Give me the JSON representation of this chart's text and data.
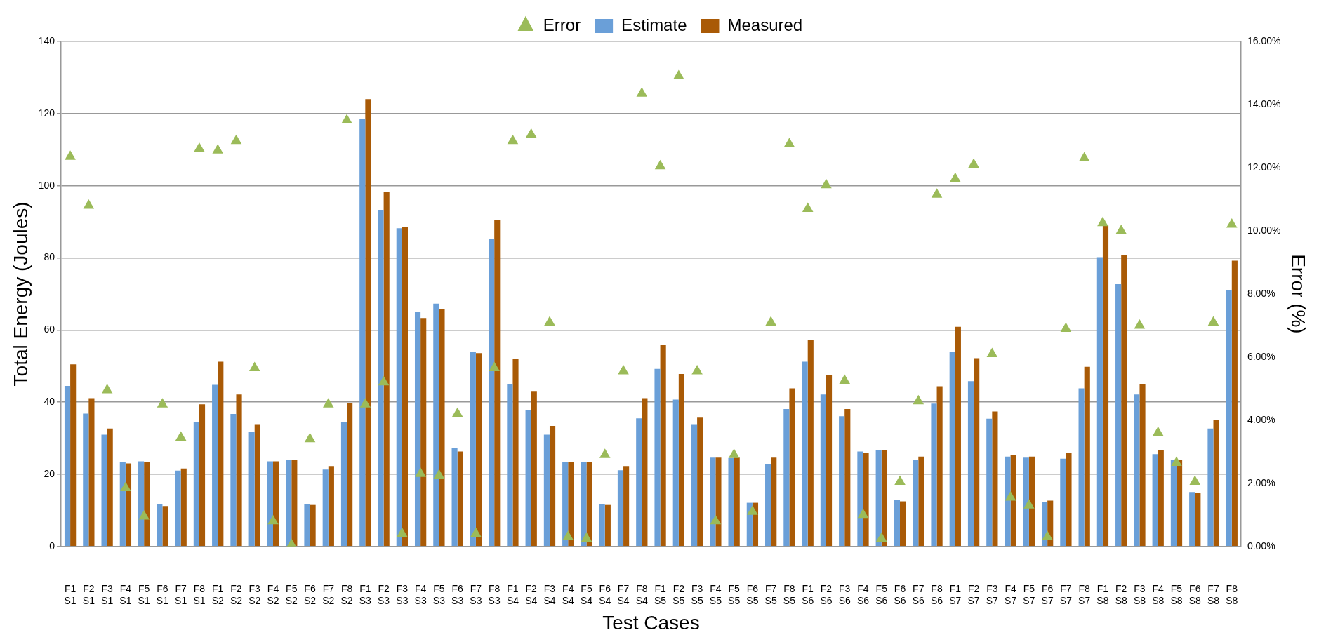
{
  "chart_data": {
    "type": "bar",
    "xlabel": "Test Cases",
    "ylabel": "Total Energy (Joules)",
    "y2label": "Error (%)",
    "categories": [
      "F1 S1",
      "F2 S1",
      "F3 S1",
      "F4 S1",
      "F5 S1",
      "F6 S1",
      "F7 S1",
      "F8 S1",
      "F1 S2",
      "F2 S2",
      "F3 S2",
      "F4 S2",
      "F5 S2",
      "F6 S2",
      "F7 S2",
      "F8 S2",
      "F1 S3",
      "F2 S3",
      "F3 S3",
      "F4 S3",
      "F5 S3",
      "F6 S3",
      "F7 S3",
      "F8 S3",
      "F1 S4",
      "F2 S4",
      "F3 S4",
      "F4 S4",
      "F5 S4",
      "F6 S4",
      "F7 S4",
      "F8 S4",
      "F1 S5",
      "F2 S5",
      "F3 S5",
      "F4 S5",
      "F5 S5",
      "F6 S5",
      "F7 S5",
      "F8 S5",
      "F1 S6",
      "F2 S6",
      "F3 S6",
      "F4 S6",
      "F5 S6",
      "F6 S6",
      "F7 S6",
      "F8 S6",
      "F1 S7",
      "F2 S7",
      "F3 S7",
      "F4 S7",
      "F5 S7",
      "F6 S7",
      "F7 S7",
      "F8 S7",
      "F1 S8",
      "F2 S8",
      "F3 S8",
      "F4 S8",
      "F5 S8",
      "F6 S8",
      "F7 S8",
      "F8 S8"
    ],
    "series": [
      {
        "name": "Estimate",
        "color": "#6a9fd8",
        "values": [
          44.5,
          36.8,
          31,
          23.3,
          23.6,
          11.8,
          21,
          34.4,
          44.8,
          36.7,
          31.7,
          23.6,
          24,
          11.8,
          21.3,
          34.4,
          118.5,
          93.2,
          88.2,
          65,
          67.3,
          27.3,
          53.9,
          85.2,
          45.1,
          37.7,
          31,
          23.3,
          23.3,
          11.8,
          21.1,
          35.5,
          49.2,
          40.7,
          33.7,
          24.6,
          24.5,
          12.1,
          22.7,
          38.1,
          51.2,
          42.1,
          36.1,
          26.3,
          26.6,
          12.8,
          23.9,
          39.6,
          53.9,
          45.8,
          35.4,
          24.9,
          24.6,
          12.4,
          24.3,
          43.8,
          80.2,
          72.7,
          42.1,
          25.6,
          24,
          15.1,
          32.7,
          71
        ]
      },
      {
        "name": "Measured",
        "color": "#a95a06",
        "values": [
          50.5,
          41.1,
          32.7,
          23,
          23.3,
          11.2,
          21.6,
          39.4,
          51.2,
          42.1,
          33.7,
          23.6,
          24,
          11.5,
          22.3,
          39.7,
          124,
          98.4,
          88.6,
          63.3,
          65.7,
          26.3,
          53.6,
          90.6,
          51.9,
          43.1,
          33.4,
          23.3,
          23.3,
          11.5,
          22.3,
          41.1,
          55.8,
          47.8,
          35.7,
          24.6,
          24.6,
          12.1,
          24.6,
          43.8,
          57.2,
          47.5,
          38.1,
          26,
          26.6,
          12.5,
          24.9,
          44.4,
          60.9,
          52.2,
          37.4,
          25.3,
          24.9,
          12.7,
          26,
          49.8,
          89,
          80.8,
          45.1,
          26.6,
          23.9,
          14.8,
          35,
          79.2
        ]
      },
      {
        "name": "Error",
        "type": "scatter",
        "axis": "y2",
        "marker": "triangle",
        "color": "#9bbb59",
        "values": [
          12.35,
          10.8,
          4.95,
          1.85,
          0.95,
          4.5,
          3.45,
          12.6,
          12.55,
          12.85,
          5.65,
          0.8,
          0.05,
          3.4,
          4.5,
          13.5,
          4.5,
          5.2,
          0.4,
          2.3,
          2.25,
          4.2,
          0.4,
          5.65,
          12.85,
          13.05,
          7.1,
          0.3,
          0.25,
          2.9,
          5.55,
          14.35,
          12.05,
          14.9,
          5.55,
          0.8,
          2.9,
          1.1,
          7.1,
          12.75,
          10.7,
          11.45,
          5.25,
          1,
          0.25,
          2.05,
          4.6,
          11.15,
          11.65,
          12.1,
          6.1,
          1.55,
          1.3,
          0.3,
          6.9,
          12.3,
          10.25,
          10,
          7,
          3.6,
          2.65,
          2.05,
          7.1,
          10.2
        ]
      }
    ],
    "ylim": [
      0,
      140
    ],
    "yticks": [
      0,
      20,
      40,
      60,
      80,
      100,
      120,
      140
    ],
    "y2lim": [
      0,
      16
    ],
    "y2ticks": [
      {
        "value": 0,
        "label": "0.00%"
      },
      {
        "value": 2,
        "label": "2.00%"
      },
      {
        "value": 4,
        "label": "4.00%"
      },
      {
        "value": 6,
        "label": "6.00%"
      },
      {
        "value": 8,
        "label": "8.00%"
      },
      {
        "value": 10,
        "label": "10.00%"
      },
      {
        "value": 12,
        "label": "12.00%"
      },
      {
        "value": 14,
        "label": "14.00%"
      },
      {
        "value": 16,
        "label": "16.00%"
      }
    ],
    "grid": "y",
    "legend": "top"
  }
}
